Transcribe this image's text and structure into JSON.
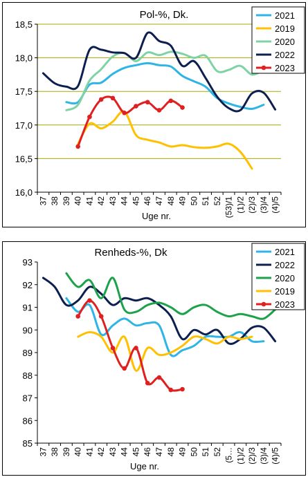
{
  "chart_data": [
    {
      "type": "line",
      "title": "Pol-%, Dk.",
      "xlabel": "Uge nr.",
      "ylabel": "",
      "ylim": [
        16.0,
        18.5
      ],
      "yticks": [
        "16,0",
        "16,5",
        "17,0",
        "17,5",
        "18,0",
        "18,5"
      ],
      "grid": "horizontal",
      "legend_position": "top-right",
      "categories": [
        "37",
        "38",
        "39",
        "40",
        "41",
        "42",
        "43",
        "44",
        "45",
        "46",
        "47",
        "48",
        "49",
        "50",
        "51",
        "52",
        "(53)/1",
        "(1)/2",
        "(2)/3",
        "(3)/4",
        "(4)/5"
      ],
      "series": [
        {
          "name": "2021",
          "color": "#2FB4E6",
          "markers": false,
          "x": [
            39,
            40,
            41,
            42,
            43,
            44,
            45,
            46,
            47,
            48,
            49,
            50,
            51,
            52,
            53,
            54,
            55,
            56
          ],
          "y": [
            17.34,
            17.34,
            17.6,
            17.63,
            17.76,
            17.85,
            17.89,
            17.92,
            17.89,
            17.87,
            17.73,
            17.65,
            17.57,
            17.4,
            17.32,
            17.27,
            17.24,
            17.3
          ]
        },
        {
          "name": "2019",
          "color": "#FFC000",
          "markers": false,
          "x": [
            40,
            41,
            42,
            43,
            44,
            45,
            46,
            47,
            48,
            49,
            50,
            51,
            52,
            53,
            54,
            55
          ],
          "y": [
            16.72,
            17.02,
            16.95,
            17.05,
            17.2,
            16.85,
            16.78,
            16.74,
            16.68,
            16.7,
            16.67,
            16.66,
            16.68,
            16.72,
            16.6,
            16.35
          ]
        },
        {
          "name": "2020",
          "color": "#7ED3A4",
          "markers": false,
          "x": [
            39,
            40,
            41,
            42,
            43,
            44,
            45,
            46,
            47,
            48,
            49,
            50,
            51,
            52,
            53,
            54,
            55,
            56
          ],
          "y": [
            17.22,
            17.3,
            17.66,
            17.83,
            18.02,
            18.07,
            17.95,
            18.08,
            18.04,
            18.09,
            18.06,
            18.0,
            18.03,
            17.8,
            17.82,
            17.88,
            17.75,
            17.82
          ]
        },
        {
          "name": "2022",
          "color": "#0D1F4F",
          "markers": false,
          "x": [
            37,
            38,
            39,
            40,
            41,
            42,
            43,
            44,
            45,
            46,
            47,
            48,
            49,
            50,
            51,
            52,
            53,
            54,
            55,
            56,
            57
          ],
          "y": [
            17.77,
            17.62,
            17.57,
            17.58,
            18.12,
            18.12,
            18.08,
            18.07,
            18.0,
            18.37,
            18.25,
            18.18,
            17.88,
            17.95,
            17.7,
            17.42,
            17.25,
            17.22,
            17.47,
            17.48,
            17.23
          ]
        },
        {
          "name": "2023",
          "color": "#E02020",
          "markers": true,
          "x": [
            40,
            41,
            42,
            43,
            44,
            45,
            46,
            47,
            48,
            49
          ],
          "y": [
            16.68,
            17.12,
            17.38,
            17.4,
            17.18,
            17.28,
            17.34,
            17.22,
            17.36,
            17.26
          ]
        }
      ]
    },
    {
      "type": "line",
      "title": "Renheds-%, Dk",
      "xlabel": "Uge nr.",
      "ylabel": "",
      "ylim": [
        85,
        93
      ],
      "yticks": [
        "85",
        "86",
        "87",
        "88",
        "89",
        "90",
        "91",
        "92",
        "93"
      ],
      "grid": "none",
      "legend_position": "top-right",
      "categories": [
        "37",
        "38",
        "39",
        "40",
        "41",
        "42",
        "43",
        "44",
        "45",
        "46",
        "47",
        "48",
        "49",
        "50",
        "51",
        "52",
        "(5…",
        "(1)/2",
        "(2)/3",
        "(3)/4",
        "(4)/5"
      ],
      "series": [
        {
          "name": "2021",
          "color": "#2FB4E6",
          "markers": false,
          "x": [
            39,
            40,
            41,
            42,
            43,
            44,
            45,
            46,
            47,
            48,
            49,
            50,
            51,
            52,
            53,
            54,
            55,
            56
          ],
          "y": [
            91.4,
            90.8,
            91.1,
            89.8,
            90.2,
            90.5,
            90.2,
            90.3,
            90.2,
            88.9,
            89.1,
            89.3,
            89.7,
            89.7,
            89.7,
            89.9,
            89.5,
            89.5
          ]
        },
        {
          "name": "2022",
          "color": "#0D1F4F",
          "markers": false,
          "x": [
            37,
            38,
            39,
            40,
            41,
            42,
            43,
            44,
            45,
            46,
            47,
            48,
            49,
            50,
            51,
            52,
            53,
            54,
            55,
            56,
            57
          ],
          "y": [
            92.3,
            91.9,
            91.1,
            91.3,
            91.9,
            91.6,
            91.1,
            91.4,
            91.3,
            91.4,
            91.1,
            90.6,
            89.6,
            90.0,
            89.8,
            90.0,
            89.4,
            89.6,
            90.1,
            90.1,
            89.5
          ]
        },
        {
          "name": "2020",
          "color": "#1DA24B",
          "markers": false,
          "x": [
            39,
            40,
            41,
            42,
            43,
            44,
            45,
            46,
            47,
            48,
            49,
            50,
            51,
            52,
            53,
            54,
            55,
            56,
            57
          ],
          "y": [
            92.5,
            91.9,
            92.2,
            91.4,
            92.3,
            90.9,
            90.8,
            91.1,
            91.2,
            91.0,
            90.7,
            91.0,
            91.1,
            90.8,
            90.6,
            90.7,
            90.6,
            90.5,
            90.9
          ]
        },
        {
          "name": "2019",
          "color": "#FFC000",
          "markers": false,
          "x": [
            40,
            41,
            42,
            43,
            44,
            45,
            46,
            47,
            48,
            49,
            50,
            51,
            52,
            53,
            54,
            55
          ],
          "y": [
            89.7,
            89.9,
            89.7,
            89.0,
            89.7,
            88.2,
            89.2,
            88.9,
            89.0,
            89.3,
            89.7,
            89.6,
            89.4,
            89.7,
            89.6,
            89.7
          ]
        },
        {
          "name": "2023",
          "color": "#E02020",
          "markers": true,
          "x": [
            40,
            41,
            42,
            43,
            44,
            45,
            46,
            47,
            48,
            49
          ],
          "y": [
            90.6,
            91.3,
            90.6,
            89.2,
            88.3,
            89.2,
            87.65,
            87.9,
            87.35,
            87.38
          ]
        }
      ]
    }
  ]
}
